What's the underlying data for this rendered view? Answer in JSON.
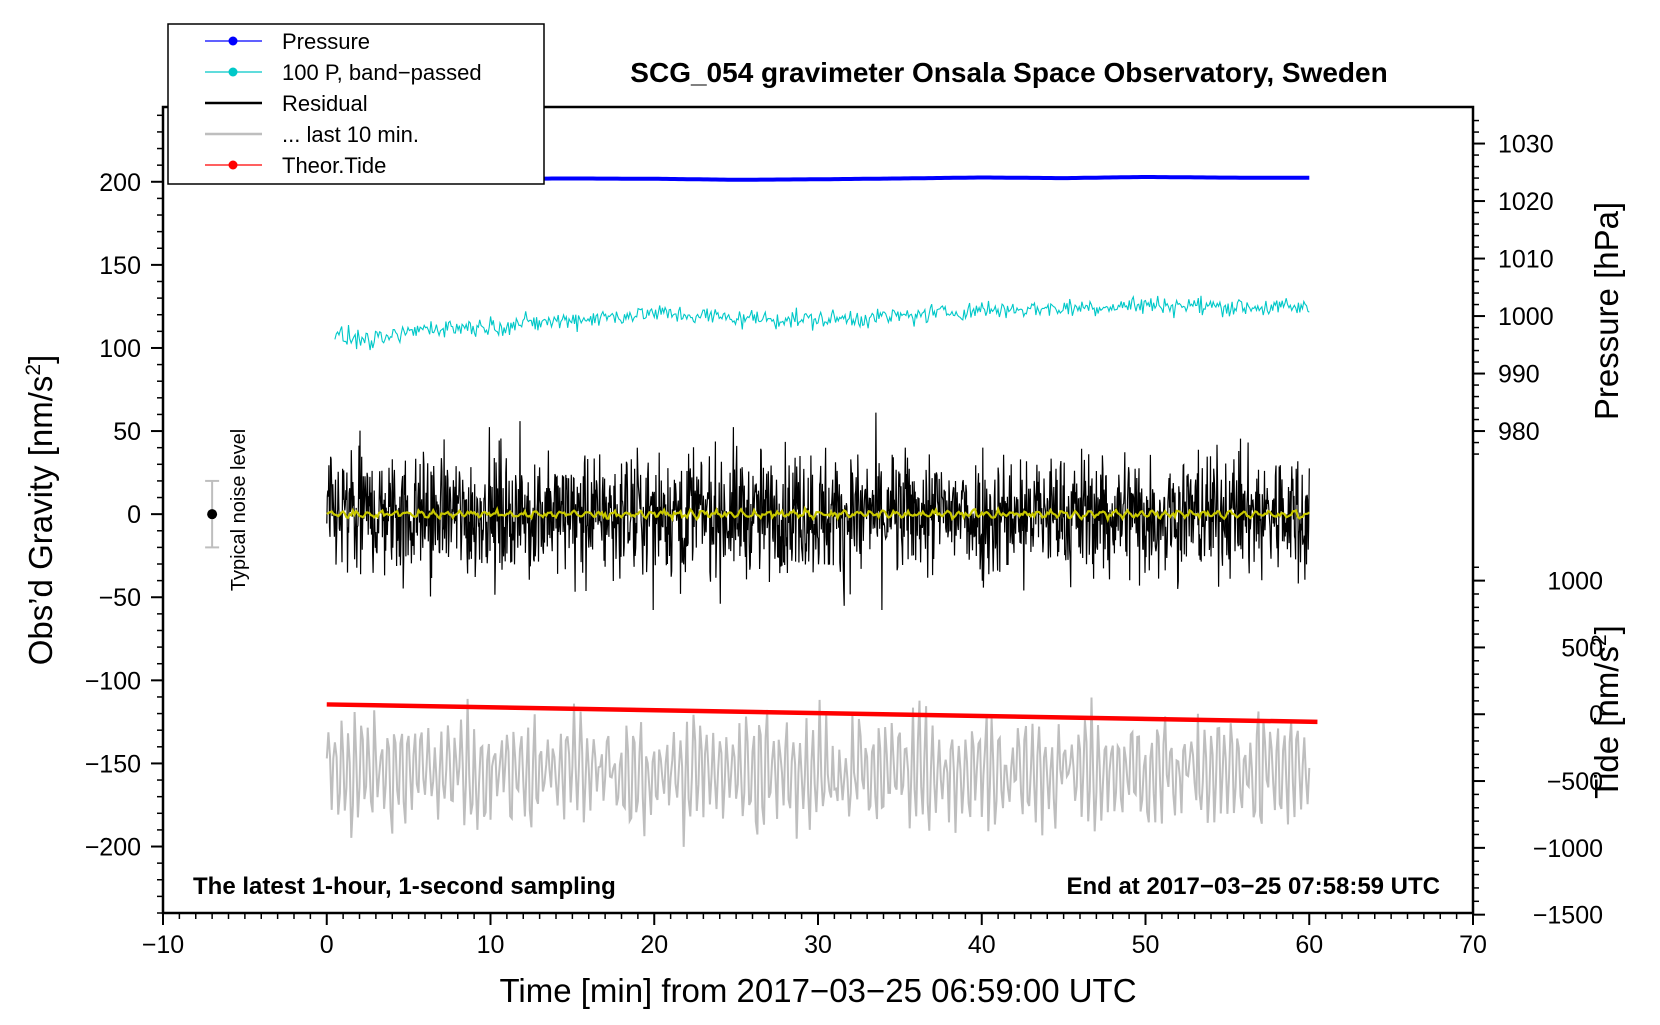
{
  "chart_data": {
    "type": "line",
    "title": "SCG_054 gravimeter Onsala Space Observatory, Sweden",
    "xlabel": "Time [min] from 2017−03−25 06:59:00 UTC",
    "ylabel_left_main": "Obs’d Gravity [nm/s",
    "ylabel_left_sup": "2",
    "ylabel_left_end": "]",
    "ylabel_right_top": "Pressure [hPa]",
    "ylabel_right_bottom_main": "Tide [nm/s",
    "ylabel_right_bottom_sup": "2",
    "ylabel_right_bottom_end": "]",
    "xlim": [
      -10,
      70
    ],
    "ylim": [
      -240,
      245
    ],
    "x_ticks": [
      -10,
      0,
      10,
      20,
      30,
      40,
      50,
      60,
      70
    ],
    "x_tick_labels": [
      "−10",
      "0",
      "10",
      "20",
      "30",
      "40",
      "50",
      "60",
      "70"
    ],
    "y_ticks": [
      200,
      150,
      100,
      50,
      0,
      -50,
      -100,
      -150,
      -200
    ],
    "y_tick_labels": [
      "200",
      "150",
      "100",
      "50",
      "0",
      "−50",
      "−100",
      "−150",
      "−200"
    ],
    "pressure_ticks": [
      1030,
      1020,
      1010,
      1000,
      990,
      980
    ],
    "pressure_tick_labels": [
      "1030",
      "1020",
      "1010",
      "1000",
      "990",
      "980"
    ],
    "tide_ticks": [
      1000,
      500,
      0,
      -500,
      -1000,
      -1500
    ],
    "tide_tick_labels": [
      "1000",
      "500",
      "0",
      "−500",
      "−1000",
      "−1500"
    ],
    "pressure_axis_mapping": {
      "hpa": [
        980,
        1030
      ],
      "gravity": [
        50,
        223
      ]
    },
    "tide_axis_mapping": {
      "tide": [
        -1500,
        1000
      ],
      "gravity": [
        -241,
        -40
      ]
    },
    "annotation_left": "The latest 1-hour, 1-second sampling",
    "annotation_right": "End at 2017−03−25 07:58:59 UTC",
    "noise_label": "Typical noise level",
    "noise_bar": {
      "x": -7,
      "y": 0,
      "half_range": 20
    },
    "legend": [
      {
        "name": "Pressure",
        "color": "#0000ff",
        "marker": true
      },
      {
        "name": "100 P, band−passed",
        "color": "#00c8c8",
        "marker": true
      },
      {
        "name": "Residual",
        "color": "#000000",
        "marker": false
      },
      {
        "name": "... last 10 min.",
        "color": "#bebebe",
        "marker": false
      },
      {
        "name": "Theor.Tide",
        "color": "#ff0000",
        "marker": true
      }
    ],
    "series": [
      {
        "name": "Pressure",
        "color": "#0000ff",
        "x": [
          0,
          5,
          10,
          15,
          20,
          25,
          30,
          35,
          40,
          45,
          50,
          55,
          60
        ],
        "values": [
          201.5,
          201.5,
          201.8,
          202.0,
          201.8,
          201.2,
          201.5,
          202.0,
          202.6,
          202.2,
          202.9,
          202.5,
          202.4
        ]
      },
      {
        "name": "100 P, band−passed",
        "color": "#00c8c8",
        "x": [
          0,
          3,
          6,
          10,
          15,
          20,
          25,
          30,
          35,
          40,
          45,
          50,
          55,
          60
        ],
        "values": [
          108,
          104,
          112,
          113,
          117,
          121,
          118,
          117,
          119,
          123,
          124,
          126,
          125,
          124
        ],
        "noise_amplitude": 4
      },
      {
        "name": "Residual",
        "color": "#000000",
        "x": [
          0,
          60
        ],
        "values": [
          0,
          0
        ],
        "noise_amplitude": 18,
        "max": 65,
        "min": -63
      },
      {
        "name": "Smoothed residual",
        "color": "#c8c800",
        "x": [
          0,
          60
        ],
        "values": [
          0,
          0
        ],
        "noise_amplitude": 2
      },
      {
        "name": "... last 10 min.",
        "color": "#bebebe",
        "x": [
          0,
          60
        ],
        "values": [
          -155,
          -155
        ],
        "noise_amplitude": 22,
        "max": -98,
        "min": -208
      },
      {
        "name": "Theor.Tide",
        "color": "#ff0000",
        "x": [
          0,
          60.5
        ],
        "values": [
          -114.5,
          -125
        ]
      }
    ]
  }
}
